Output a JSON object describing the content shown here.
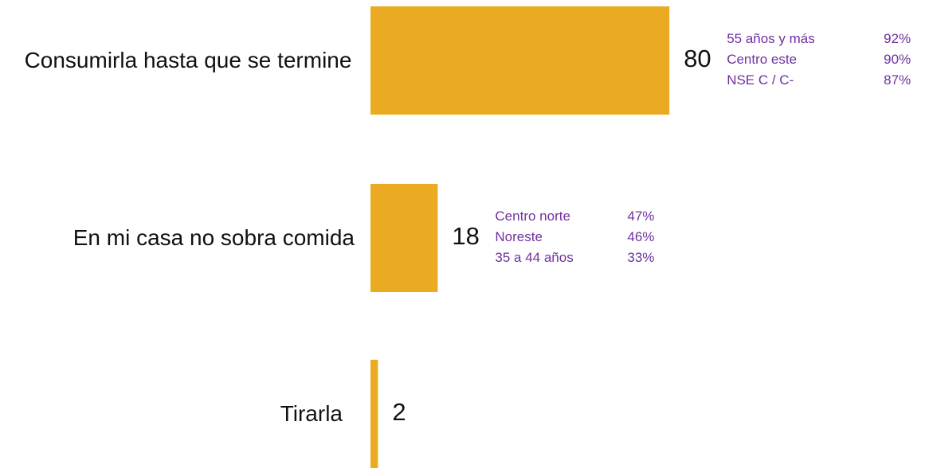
{
  "chart_data": {
    "type": "bar",
    "orientation": "horizontal",
    "categories": [
      "Consumirla hasta que se termine",
      "En mi casa no sobra comida",
      "Tirarla"
    ],
    "values": [
      80,
      18,
      2
    ],
    "color": "#eaab22",
    "annotations": [
      [
        {
          "label": "55 años y más",
          "value": "92%"
        },
        {
          "label": "Centro este",
          "value": "90%"
        },
        {
          "label": "NSE  C / C-",
          "value": "87%"
        }
      ],
      [
        {
          "label": "Centro norte",
          "value": "47%"
        },
        {
          "label": "Noreste",
          "value": "46%"
        },
        {
          "label": "35 a 44 años",
          "value": "33%"
        }
      ],
      []
    ],
    "annotation_color": "#7030a0"
  }
}
